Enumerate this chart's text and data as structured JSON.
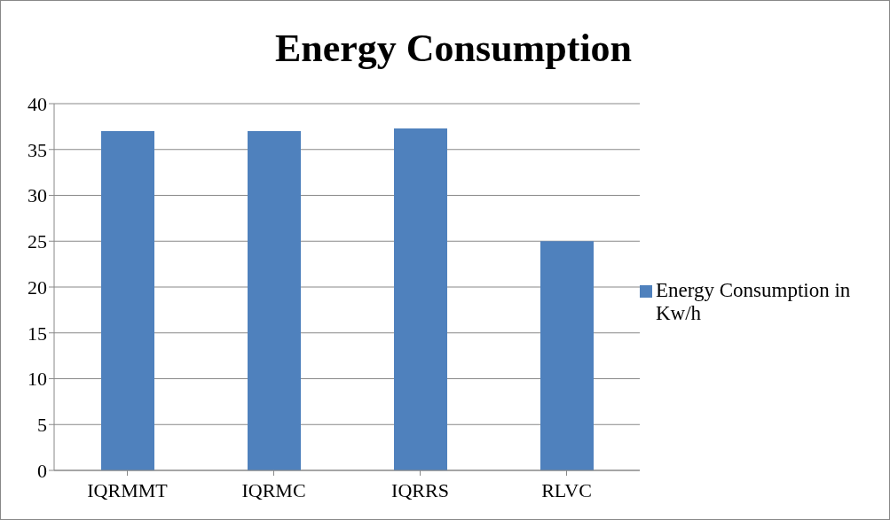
{
  "chart_data": {
    "type": "bar",
    "title": "Energy Consumption",
    "categories": [
      "IQRMMT",
      "IQRMC",
      "IQRRS",
      "RLVC"
    ],
    "series": [
      {
        "name": "Energy Consumption in Kw/h",
        "color": "#4f81bd",
        "values": [
          37,
          37,
          37.3,
          25
        ]
      }
    ],
    "ylim": [
      0,
      40
    ],
    "yticks": [
      0,
      5,
      10,
      15,
      20,
      25,
      30,
      35,
      40
    ],
    "grid": "y",
    "legend": "right"
  }
}
